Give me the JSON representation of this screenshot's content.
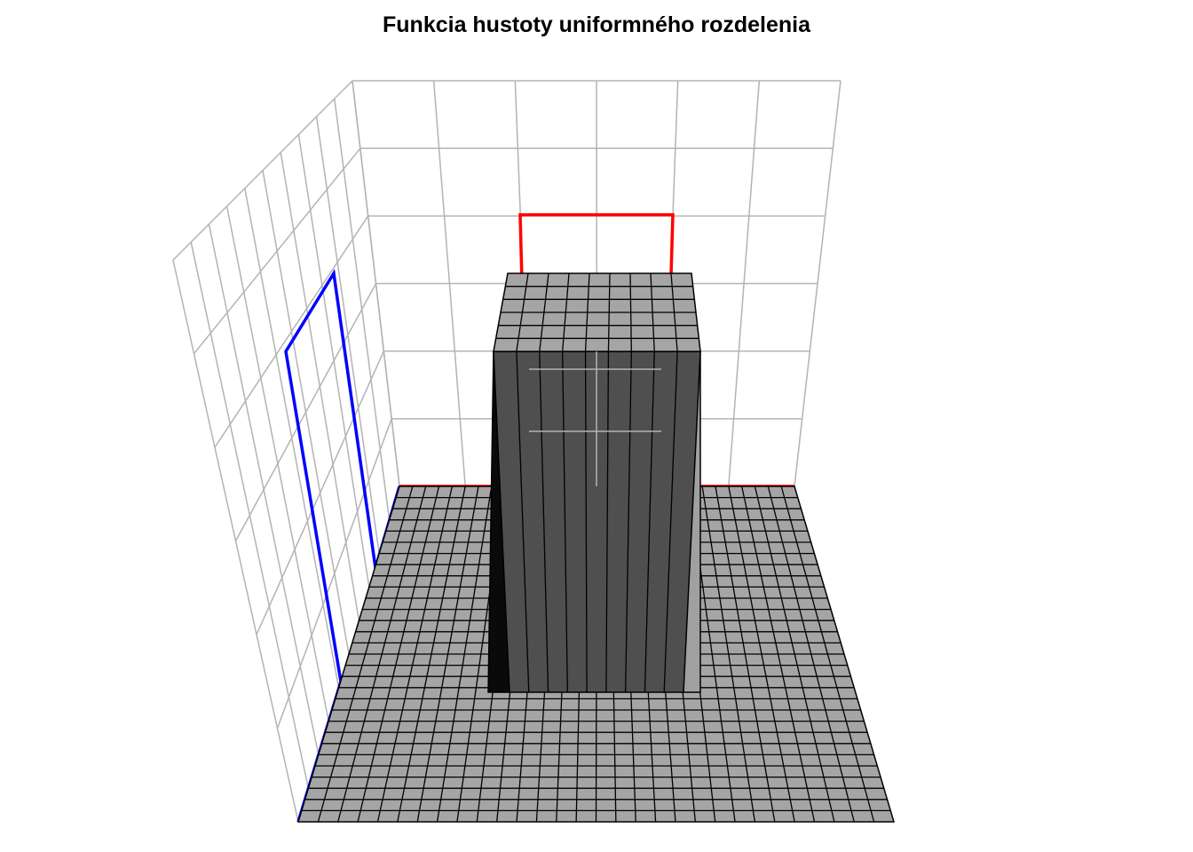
{
  "chart_data": {
    "type": "surface3d",
    "title": "Funkcia hustoty uniformného rozdelenia",
    "description_of_function": "bivariate uniform density: constant on the inner rectangle, zero outside",
    "x_range": [
      0,
      1
    ],
    "y_range": [
      0,
      1
    ],
    "support": {
      "x": [
        0.35,
        0.65
      ],
      "y": [
        0.35,
        0.65
      ]
    },
    "grid_resolution": 30,
    "colors": {
      "surface_top": "#a5a5a5",
      "surface_wall_front": "#4f4f4f",
      "surface_wall_side_dark": "#0a0a0a",
      "surface_wall_side_light": "#a0a0a0",
      "mesh_line": "#000000",
      "back_grid": "#b3b3b3",
      "x_marginal": "#ff0000",
      "y_marginal": "#0000ff"
    },
    "marginals": [
      {
        "name": "",
        "axis": "x",
        "color": "#ff0000"
      },
      {
        "name": "",
        "axis": "y",
        "color": "#0000ff"
      }
    ],
    "grid": true
  }
}
